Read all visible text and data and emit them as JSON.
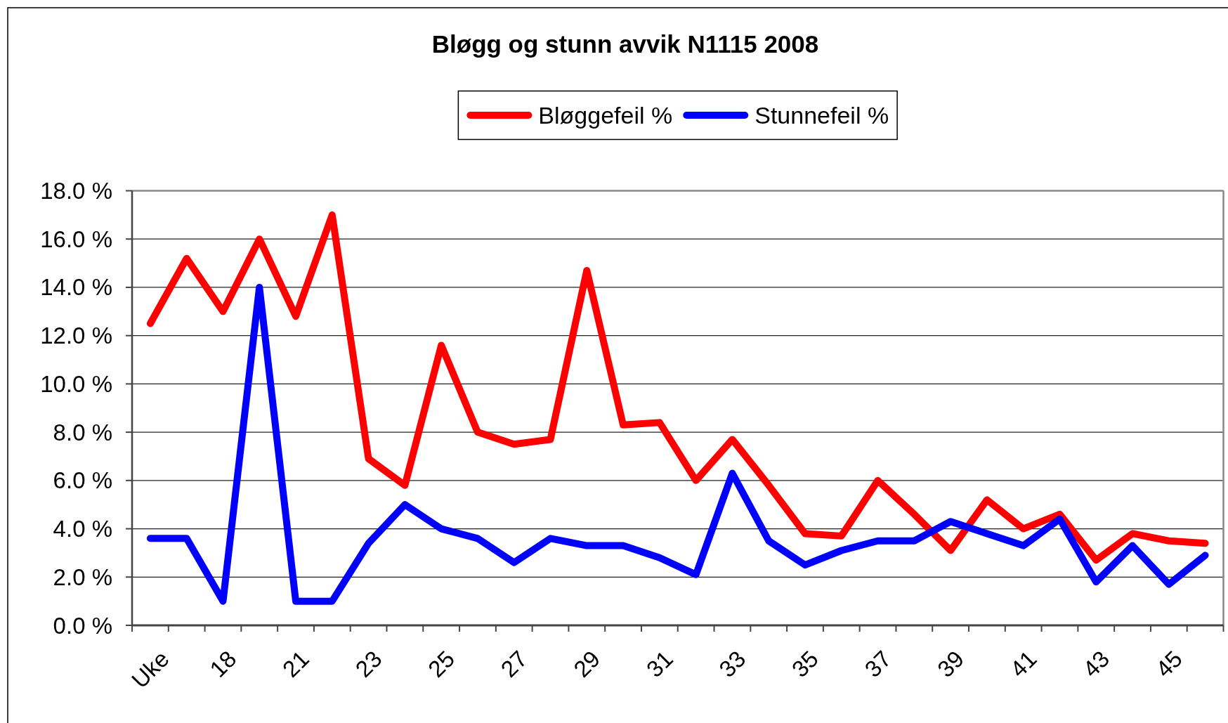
{
  "chart_data": {
    "type": "line",
    "title": "Bløgg og stunn avvik N1115 2008",
    "categories": [
      "Uke",
      null,
      "18",
      null,
      "21",
      null,
      "23",
      null,
      "25",
      null,
      "27",
      null,
      "29",
      null,
      "31",
      null,
      "33",
      null,
      "35",
      null,
      "37",
      null,
      "39",
      null,
      "41",
      null,
      "43",
      null,
      "45",
      null
    ],
    "series": [
      {
        "name": "Bløggefeil %",
        "color": "#ff0000",
        "values": [
          12.5,
          15.2,
          13.0,
          16.0,
          12.8,
          17.0,
          6.9,
          5.8,
          11.6,
          8.0,
          7.5,
          7.7,
          14.7,
          8.3,
          8.4,
          6.0,
          7.7,
          5.8,
          3.8,
          3.7,
          6.0,
          4.6,
          3.1,
          5.2,
          4.0,
          4.6,
          2.7,
          3.8,
          3.5,
          3.4
        ]
      },
      {
        "name": "Stunnefeil %",
        "color": "#0000ff",
        "values": [
          3.6,
          3.6,
          1.0,
          14.0,
          1.0,
          1.0,
          3.4,
          5.0,
          4.0,
          3.6,
          2.6,
          3.6,
          3.3,
          3.3,
          2.8,
          2.1,
          6.3,
          3.5,
          2.5,
          3.1,
          3.5,
          3.5,
          4.3,
          3.8,
          3.3,
          4.4,
          1.8,
          3.3,
          1.7,
          2.9
        ]
      }
    ],
    "ylim": [
      0,
      18
    ],
    "yticks": [
      {
        "value": 0,
        "label": "0.0 %"
      },
      {
        "value": 2,
        "label": "2.0 %"
      },
      {
        "value": 4,
        "label": "4.0 %"
      },
      {
        "value": 6,
        "label": "6.0 %"
      },
      {
        "value": 8,
        "label": "8.0 %"
      },
      {
        "value": 10,
        "label": "10.0 %"
      },
      {
        "value": 12,
        "label": "12.0 %"
      },
      {
        "value": 14,
        "label": "14.0 %"
      },
      {
        "value": 16,
        "label": "16.0 %"
      },
      {
        "value": 18,
        "label": "18.0 %"
      }
    ],
    "grid": "y",
    "legend": "top"
  }
}
